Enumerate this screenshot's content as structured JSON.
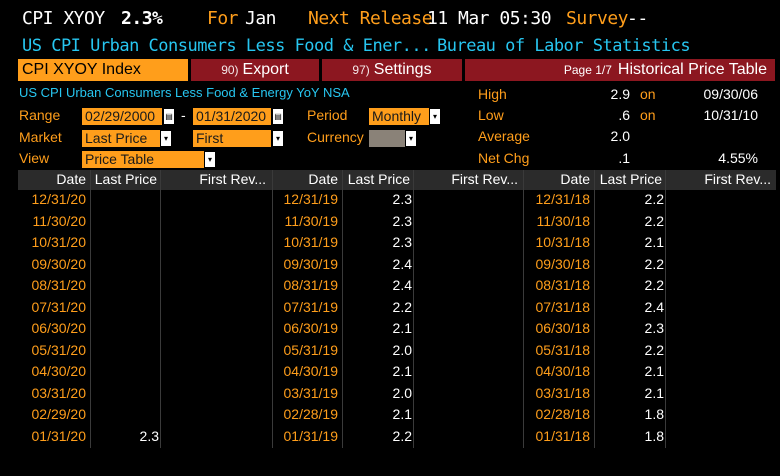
{
  "header": {
    "ticker": "CPI XYOY",
    "value": "2.3%",
    "for_label": "For",
    "for_value": "Jan",
    "next_release_label": "Next Release",
    "next_release_value": "11 Mar 05:30",
    "survey_label": "Survey",
    "survey_value": "--",
    "long_name": "US CPI Urban Consumers Less Food & Ener...",
    "source": "Bureau of Labor Statistics"
  },
  "tabs": {
    "index": "CPI XYOY Index",
    "export_key": "90",
    "export": "Export",
    "settings_key": "97",
    "settings": "Settings",
    "page": "Page 1/7",
    "historical": "Historical Price Table"
  },
  "controls": {
    "series_name": "US CPI Urban Consumers Less Food & Energy YoY NSA",
    "range_label": "Range",
    "range_start": "02/29/2000",
    "range_dash": "-",
    "range_end": "01/31/2020",
    "period_label": "Period",
    "period_value": "Monthly",
    "market_label": "Market",
    "market_value": "Last Price",
    "revision_value": "First Revisio",
    "currency_label": "Currency",
    "currency_value": "",
    "view_label": "View",
    "view_value": "Price Table"
  },
  "stats": {
    "high_label": "High",
    "high_value": "2.9",
    "high_on": "on",
    "high_date": "09/30/06",
    "low_label": "Low",
    "low_value": ".6",
    "low_on": "on",
    "low_date": "10/31/10",
    "avg_label": "Average",
    "avg_value": "2.0",
    "netchg_label": "Net Chg",
    "netchg_value": ".1",
    "netchg_pct": "4.55%"
  },
  "table": {
    "headers": [
      "Date",
      "Last Price",
      "First Rev..."
    ],
    "columns": [
      {
        "rows": [
          [
            "12/31/20",
            ""
          ],
          [
            "11/30/20",
            ""
          ],
          [
            "10/31/20",
            ""
          ],
          [
            "09/30/20",
            ""
          ],
          [
            "08/31/20",
            ""
          ],
          [
            "07/31/20",
            ""
          ],
          [
            "06/30/20",
            ""
          ],
          [
            "05/31/20",
            ""
          ],
          [
            "04/30/20",
            ""
          ],
          [
            "03/31/20",
            ""
          ],
          [
            "02/29/20",
            ""
          ],
          [
            "01/31/20",
            "2.3"
          ]
        ]
      },
      {
        "rows": [
          [
            "12/31/19",
            "2.3"
          ],
          [
            "11/30/19",
            "2.3"
          ],
          [
            "10/31/19",
            "2.3"
          ],
          [
            "09/30/19",
            "2.4"
          ],
          [
            "08/31/19",
            "2.4"
          ],
          [
            "07/31/19",
            "2.2"
          ],
          [
            "06/30/19",
            "2.1"
          ],
          [
            "05/31/19",
            "2.0"
          ],
          [
            "04/30/19",
            "2.1"
          ],
          [
            "03/31/19",
            "2.0"
          ],
          [
            "02/28/19",
            "2.1"
          ],
          [
            "01/31/19",
            "2.2"
          ]
        ]
      },
      {
        "rows": [
          [
            "12/31/18",
            "2.2"
          ],
          [
            "11/30/18",
            "2.2"
          ],
          [
            "10/31/18",
            "2.1"
          ],
          [
            "09/30/18",
            "2.2"
          ],
          [
            "08/31/18",
            "2.2"
          ],
          [
            "07/31/18",
            "2.4"
          ],
          [
            "06/30/18",
            "2.3"
          ],
          [
            "05/31/18",
            "2.2"
          ],
          [
            "04/30/18",
            "2.1"
          ],
          [
            "03/31/18",
            "2.1"
          ],
          [
            "02/28/18",
            "1.8"
          ],
          [
            "01/31/18",
            "1.8"
          ]
        ]
      }
    ]
  },
  "colors": {
    "orange": "#ff9e1b",
    "cyan": "#27c6f0",
    "red": "#8c1720"
  }
}
